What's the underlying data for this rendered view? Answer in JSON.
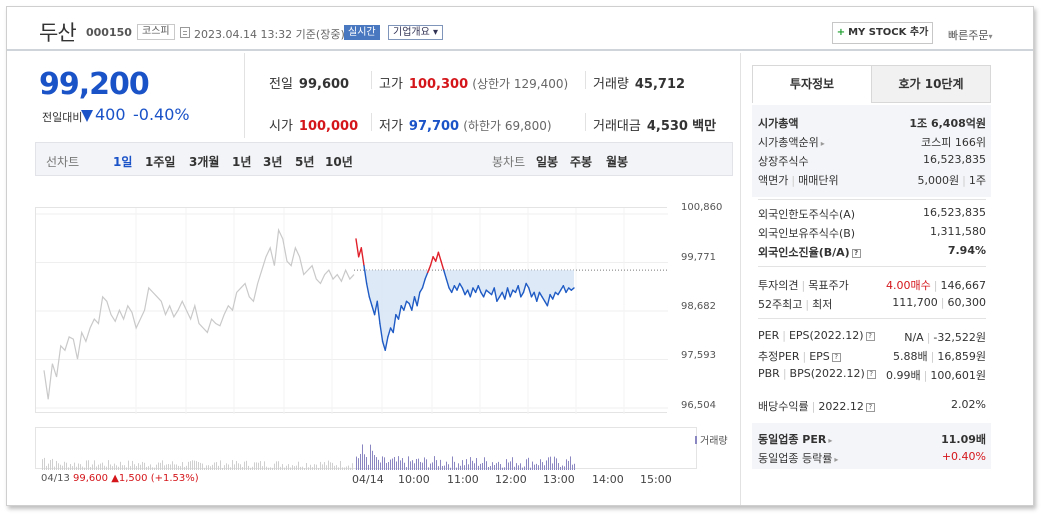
{
  "header": {
    "name": "두산",
    "code": "000150",
    "market": "코스피",
    "datetime": "2023.04.14 13:32  기준(장중)",
    "realtime": "실시간",
    "overview": "기업개요",
    "mystock_plus": "+",
    "mystock": "MY STOCK 추가",
    "quick_order": "빠른주문"
  },
  "price": {
    "current": "99,200",
    "change_label": "전일대비",
    "change": "400",
    "change_pct": "-0.40%"
  },
  "stats": {
    "prev_close_label": "전일",
    "prev_close": "99,600",
    "high_label": "고가",
    "high": "100,300",
    "upper_limit": "(상한가 129,400)",
    "volume_label": "거래량",
    "volume": "45,712",
    "open_label": "시가",
    "open": "100,000",
    "low_label": "저가",
    "low": "97,700",
    "lower_limit": "(하한가 69,800)",
    "amount_label": "거래대금",
    "amount": "4,530",
    "amount_unit": "백만"
  },
  "chart_tabs": {
    "line_label": "선차트",
    "periods": [
      "1일",
      "1주일",
      "3개월",
      "1년",
      "3년",
      "5년",
      "10년"
    ],
    "candle_label": "봉차트",
    "candles": [
      "일봉",
      "주봉",
      "월봉"
    ]
  },
  "chart_data": {
    "type": "line",
    "yticks": [
      "100,860",
      "99,771",
      "98,682",
      "97,593",
      "96,504"
    ],
    "ylim": [
      96504,
      100860
    ],
    "reference_price": 99600,
    "xticks": [
      "04/14",
      "10:00",
      "11:00",
      "12:00",
      "13:00",
      "14:00",
      "15:00"
    ],
    "volume_label": "거래량",
    "prev_day": {
      "date": "04/13",
      "price": "99,600",
      "change": "▲1,500",
      "pct": "(+1.53%)",
      "values": [
        97350,
        96700,
        97500,
        97200,
        97900,
        97800,
        98100,
        98050,
        97600,
        98200,
        98000,
        98300,
        98500,
        98400,
        99000,
        98900,
        98600,
        98450,
        98700,
        98500,
        98800,
        98650,
        98300,
        98500,
        98700,
        99200,
        99100,
        99000,
        98900,
        98600,
        98800,
        98550,
        98700,
        98900,
        98700,
        98500,
        98800,
        98400,
        98300,
        98200,
        98500,
        98400,
        98350,
        98600,
        98800,
        98700,
        99100,
        99200,
        99300,
        99000,
        98900,
        99300,
        99600,
        99900,
        100100,
        99700,
        100500,
        100300,
        99800,
        99700,
        100100,
        99900,
        99500,
        99600,
        99700,
        99400,
        99300,
        99500,
        99600,
        99400,
        99500,
        99350,
        99600,
        99400,
        99500
      ]
    },
    "today": {
      "values": [
        100300,
        99900,
        100100,
        99700,
        99300,
        99000,
        98800,
        98600,
        98900,
        98400,
        98000,
        97800,
        98100,
        98300,
        98200,
        98600,
        98500,
        98800,
        98700,
        98900,
        98850,
        98700,
        99000,
        98800,
        99100,
        99200,
        99400,
        99550,
        99700,
        99900,
        99800,
        100000,
        99800,
        99600,
        99400,
        99200,
        99100,
        99250,
        99150,
        99300,
        99200,
        99050,
        99150,
        99000,
        99200,
        99100,
        99250,
        99100,
        99000,
        99150,
        99100,
        99050,
        99200,
        98900,
        99000,
        99100,
        98950,
        99200,
        99000,
        99150,
        99100,
        99250,
        99000,
        99100,
        99300,
        99200,
        99000,
        99100,
        98900,
        99100,
        99000,
        98900,
        98800,
        99050,
        98950,
        99100,
        99050,
        99150,
        99250,
        99100,
        99200,
        99150,
        99200
      ]
    }
  },
  "invest": {
    "tab_info": "투자정보",
    "tab_orderbook": "호가 10단계",
    "market_cap_label": "시가총액",
    "market_cap": "1조 6,408억원",
    "cap_rank_label": "시가총액순위",
    "cap_rank": "코스피 166위",
    "shares_label": "상장주식수",
    "shares": "16,523,835",
    "par_label": "액면가",
    "unit_label": "매매단위",
    "par": "5,000원",
    "unit": "1주",
    "foreign_limit_label": "외국인한도주식수(A)",
    "foreign_limit": "16,523,835",
    "foreign_hold_label": "외국인보유주식수(B)",
    "foreign_hold": "1,311,580",
    "foreign_ratio_label": "외국인소진율(B/A)",
    "foreign_ratio": "7.94%",
    "opinion_label": "투자의견",
    "target_label": "목표주가",
    "opinion": "4.00매수",
    "target": "146,667",
    "w52_high_label": "52주최고",
    "w52_low_label": "최저",
    "w52_high": "111,700",
    "w52_low": "60,300",
    "per_label": "PER",
    "eps_label": "EPS(2022.12)",
    "per": "N/A",
    "eps": "-32,522원",
    "est_per_label": "추정PER",
    "est_eps_label": "EPS",
    "est_per": "5.88배",
    "est_eps": "16,859원",
    "pbr_label": "PBR",
    "bps_label": "BPS(2022.12)",
    "pbr": "0.99배",
    "bps": "100,601원",
    "div_label": "배당수익률",
    "div_date": "2022.12",
    "div": "2.02%",
    "sector_per_label": "동일업종 PER",
    "sector_per": "11.09배",
    "sector_chg_label": "동일업종 등락률",
    "sector_chg": "+0.40%"
  }
}
